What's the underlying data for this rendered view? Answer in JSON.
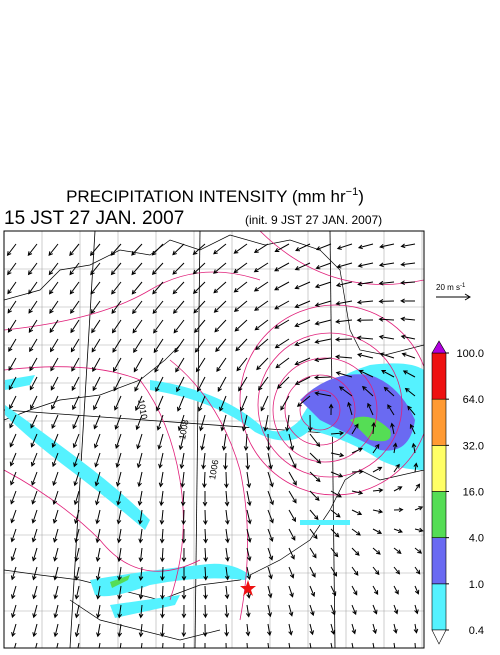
{
  "header": {
    "title": "PRECIPITATION INTENSITY (mm hr",
    "title_sup": "−1",
    "title_end": ")",
    "time": "15 JST 27 JAN. 2007",
    "init": "(init. 9 JST 27 JAN. 2007)"
  },
  "scale": {
    "label": "20 m s",
    "sup": "-1"
  },
  "contour_labels": [
    "1010",
    "1008",
    "1006"
  ],
  "colorbar": {
    "ticks": [
      {
        "value": 0.4,
        "label": "0.4"
      },
      {
        "value": 1,
        "label": "1.0"
      },
      {
        "value": 4,
        "label": "4.0"
      },
      {
        "value": 16,
        "label": "16.0"
      },
      {
        "value": 32,
        "label": "32.0"
      },
      {
        "value": 64,
        "label": "64.0"
      },
      {
        "value": 100,
        "label": "100.0"
      }
    ],
    "colors": [
      "#55f2ff",
      "#6a6af2",
      "#55dd55",
      "#ffff66",
      "#ff9a33",
      "#ee1111"
    ],
    "under_color": "#ffffff",
    "over_color": "#b000dd"
  }
}
